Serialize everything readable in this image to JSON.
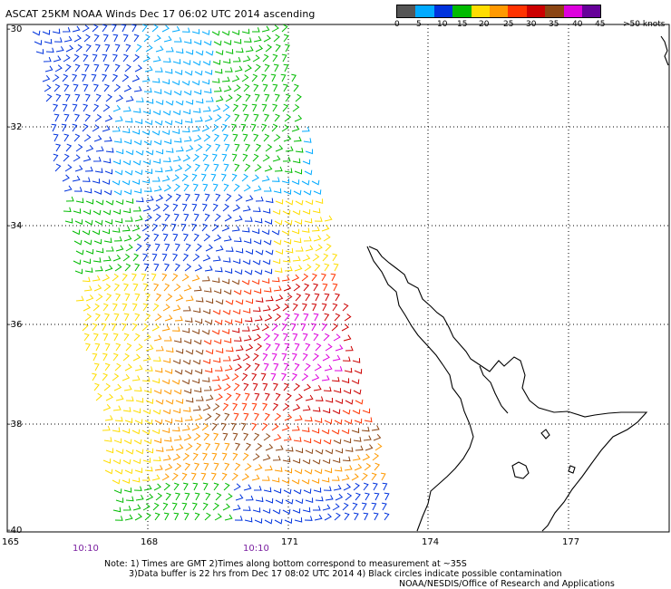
{
  "title": "ASCAT 25KM NOAA Winds Dec 17 06:02 UTC 2014 ascending",
  "legend": {
    "colors": [
      "#555555",
      "#00aaff",
      "#0033dd",
      "#00bb00",
      "#ffdd00",
      "#ff9900",
      "#ff3300",
      "#cc0000",
      "#8b4513",
      "#dd00dd",
      "#660099"
    ],
    "labels": [
      "0",
      "5",
      "10",
      "15",
      "20",
      "25",
      "30",
      "35",
      "40",
      "45",
      ">50 knots"
    ]
  },
  "axes": {
    "lat_labels": [
      "-30",
      "-32",
      "-34",
      "-36",
      "-38",
      "-40"
    ],
    "lon_labels": [
      "165",
      "168",
      "171",
      "174",
      "177"
    ]
  },
  "times": [
    "10:10",
    "10:10"
  ],
  "notes": {
    "line1": "Note: 1) Times are GMT 2)Times along bottom correspond to measurement at ~35S",
    "line2": "3)Data buffer is 22 hrs from Dec 17 08:02 UTC 2014 4) Black circles indicate possible contamination",
    "line3": "NOAA/NESDIS/Office of Research and Applications"
  }
}
